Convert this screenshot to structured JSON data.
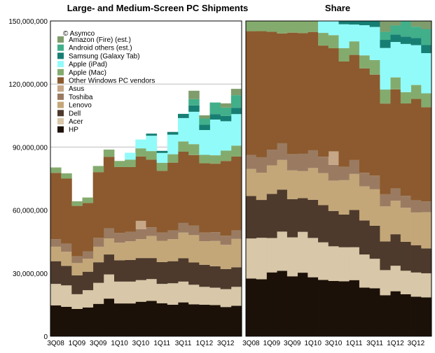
{
  "chart_data": [
    {
      "type": "area",
      "title": "Large- and Medium-Screen PC Shipments",
      "xlabel": "",
      "ylabel": "",
      "ylim": [
        0,
        150000000
      ],
      "stacked": true,
      "grid": true,
      "legend_placement": "top-left",
      "copyright": "© Asymco",
      "y_ticks": [
        "0",
        "30,000,000",
        "60,000,000",
        "90,000,000",
        "120,000,000",
        "150,000,000"
      ],
      "x_tick_labels": [
        "3Q08",
        "1Q09",
        "3Q09",
        "1Q10",
        "3Q10",
        "1Q11",
        "3Q11",
        "1Q12",
        "3Q12"
      ],
      "x": [
        "3Q08",
        "4Q08",
        "1Q09",
        "2Q09",
        "3Q09",
        "4Q09",
        "1Q10",
        "2Q10",
        "3Q10",
        "4Q10",
        "1Q11",
        "2Q11",
        "3Q11",
        "4Q11",
        "1Q12",
        "2Q12",
        "3Q12",
        "4Q12"
      ],
      "series": [
        {
          "name": "HP",
          "color": "#1c1108",
          "values": [
            14.7,
            14.0,
            13.0,
            13.7,
            15.4,
            17.9,
            15.6,
            15.6,
            16.4,
            16.8,
            15.7,
            15.0,
            16.1,
            15.2,
            15.0,
            14.8,
            13.9,
            14.5
          ]
        },
        {
          "name": "Acer",
          "color": "#d8c7a8",
          "values": [
            10.2,
            10.2,
            7.0,
            8.2,
            10.0,
            11.5,
            10.4,
            10.4,
            10.3,
            10.4,
            9.2,
            10.2,
            9.9,
            9.3,
            8.5,
            8.3,
            8.5,
            9.0
          ]
        },
        {
          "name": "Dell",
          "color": "#4d3a2c",
          "values": [
            10.8,
            9.3,
            9.0,
            8.8,
            9.8,
            9.5,
            10.1,
            10.3,
            10.5,
            10.0,
            10.4,
            10.5,
            11.1,
            10.6,
            10.5,
            10.2,
            9.6,
            9.3
          ]
        },
        {
          "name": "Lenovo",
          "color": "#c4a778",
          "values": [
            6.9,
            6.7,
            5.8,
            6.2,
            7.4,
            7.6,
            8.4,
            8.9,
            9.0,
            10.5,
            10.1,
            10.5,
            12.2,
            13.0,
            11.2,
            12.0,
            11.5,
            13.5
          ]
        },
        {
          "name": "Toshiba",
          "color": "#9a7b62",
          "values": [
            3.6,
            3.8,
            3.2,
            3.5,
            4.2,
            4.9,
            4.7,
            4.5,
            4.7,
            4.1,
            3.9,
            4.2,
            4.6,
            4.5,
            4.1,
            4.2,
            4.3,
            4.0
          ]
        },
        {
          "name": "Asus",
          "color": "#c6a788",
          "values": [
            0,
            0,
            0,
            0,
            0,
            0,
            0,
            0,
            4.0,
            0,
            0,
            0,
            0,
            0,
            0,
            0,
            0,
            0
          ]
        },
        {
          "name": "Other Windows PC vendors",
          "color": "#8c5a2e",
          "values": [
            31.5,
            31.0,
            24.0,
            23.0,
            31.2,
            34.0,
            31.3,
            30.8,
            30.6,
            32.2,
            29.4,
            32.2,
            33.9,
            33.6,
            33.0,
            32.6,
            35.6,
            35.2
          ]
        },
        {
          "name": "Apple (Mac)",
          "color": "#84ab6e",
          "values": [
            2.6,
            2.5,
            2.2,
            2.6,
            3.0,
            3.4,
            2.9,
            3.5,
            3.9,
            4.1,
            3.8,
            4.0,
            4.9,
            5.2,
            4.0,
            4.0,
            4.9,
            5.2
          ]
        },
        {
          "name": "Apple (iPad)",
          "color": "#91fbf9",
          "values": [
            0,
            0,
            0,
            0,
            0,
            0,
            0,
            3.3,
            4.2,
            7.3,
            4.7,
            9.3,
            11.1,
            15.4,
            11.8,
            17.0,
            14.0,
            15.0
          ]
        },
        {
          "name": "Samsung (Galaxy Tab)",
          "color": "#177e73",
          "values": [
            0,
            0,
            0,
            0,
            0,
            0,
            0,
            0,
            0,
            1.0,
            1.0,
            1.3,
            2.0,
            3.0,
            2.5,
            2.6,
            2.5,
            3.0
          ]
        },
        {
          "name": "Android others (est.)",
          "color": "#41af8a",
          "values": [
            0,
            0,
            0,
            0,
            0,
            0,
            0,
            0,
            0,
            0,
            0,
            0,
            0,
            3.0,
            3.0,
            5.5,
            4.0,
            6.0
          ]
        },
        {
          "name": "Amazon (Fire) (est.)",
          "color": "#7f9c6c",
          "values": [
            0,
            0,
            0,
            0,
            0,
            0,
            0,
            0,
            0,
            0,
            0,
            0,
            0,
            4.0,
            1.5,
            0,
            2.0,
            3.0
          ]
        }
      ],
      "value_unit": "millions of units"
    },
    {
      "type": "area",
      "title": "Share",
      "stacked": true,
      "normalized": true,
      "grid": false,
      "x_tick_labels": [
        "3Q08",
        "1Q09",
        "3Q09",
        "1Q10",
        "3Q10",
        "1Q11",
        "3Q11",
        "1Q12",
        "3Q12"
      ],
      "series_ref": "same as first chart"
    }
  ]
}
